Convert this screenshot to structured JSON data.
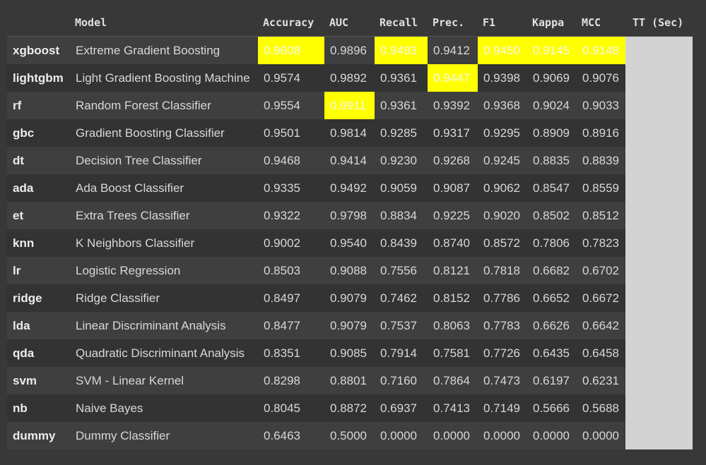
{
  "columns": [
    "",
    "Model",
    "Accuracy",
    "AUC",
    "Recall",
    "Prec.",
    "F1",
    "Kappa",
    "MCC",
    "TT (Sec)"
  ],
  "highlight_color": "#ffff00",
  "tt_column_color": "#d3d3d3",
  "rows": [
    {
      "id": "xgboost",
      "model": "Extreme Gradient Boosting",
      "accuracy": "0.9608",
      "auc": "0.9896",
      "recall": "0.9493",
      "prec": "0.9412",
      "f1": "0.9450",
      "kappa": "0.9145",
      "mcc": "0.9148",
      "tt": "",
      "highlight": [
        "accuracy",
        "recall",
        "f1",
        "kappa",
        "mcc"
      ]
    },
    {
      "id": "lightgbm",
      "model": "Light Gradient Boosting Machine",
      "accuracy": "0.9574",
      "auc": "0.9892",
      "recall": "0.9361",
      "prec": "0.9447",
      "f1": "0.9398",
      "kappa": "0.9069",
      "mcc": "0.9076",
      "tt": "",
      "highlight": [
        "prec"
      ]
    },
    {
      "id": "rf",
      "model": "Random Forest Classifier",
      "accuracy": "0.9554",
      "auc": "0.9911",
      "recall": "0.9361",
      "prec": "0.9392",
      "f1": "0.9368",
      "kappa": "0.9024",
      "mcc": "0.9033",
      "tt": "",
      "highlight": [
        "auc"
      ]
    },
    {
      "id": "gbc",
      "model": "Gradient Boosting Classifier",
      "accuracy": "0.9501",
      "auc": "0.9814",
      "recall": "0.9285",
      "prec": "0.9317",
      "f1": "0.9295",
      "kappa": "0.8909",
      "mcc": "0.8916",
      "tt": "",
      "highlight": []
    },
    {
      "id": "dt",
      "model": "Decision Tree Classifier",
      "accuracy": "0.9468",
      "auc": "0.9414",
      "recall": "0.9230",
      "prec": "0.9268",
      "f1": "0.9245",
      "kappa": "0.8835",
      "mcc": "0.8839",
      "tt": "",
      "highlight": []
    },
    {
      "id": "ada",
      "model": "Ada Boost Classifier",
      "accuracy": "0.9335",
      "auc": "0.9492",
      "recall": "0.9059",
      "prec": "0.9087",
      "f1": "0.9062",
      "kappa": "0.8547",
      "mcc": "0.8559",
      "tt": "",
      "highlight": []
    },
    {
      "id": "et",
      "model": "Extra Trees Classifier",
      "accuracy": "0.9322",
      "auc": "0.9798",
      "recall": "0.8834",
      "prec": "0.9225",
      "f1": "0.9020",
      "kappa": "0.8502",
      "mcc": "0.8512",
      "tt": "",
      "highlight": []
    },
    {
      "id": "knn",
      "model": "K Neighbors Classifier",
      "accuracy": "0.9002",
      "auc": "0.9540",
      "recall": "0.8439",
      "prec": "0.8740",
      "f1": "0.8572",
      "kappa": "0.7806",
      "mcc": "0.7823",
      "tt": "",
      "highlight": []
    },
    {
      "id": "lr",
      "model": "Logistic Regression",
      "accuracy": "0.8503",
      "auc": "0.9088",
      "recall": "0.7556",
      "prec": "0.8121",
      "f1": "0.7818",
      "kappa": "0.6682",
      "mcc": "0.6702",
      "tt": "",
      "highlight": []
    },
    {
      "id": "ridge",
      "model": "Ridge Classifier",
      "accuracy": "0.8497",
      "auc": "0.9079",
      "recall": "0.7462",
      "prec": "0.8152",
      "f1": "0.7786",
      "kappa": "0.6652",
      "mcc": "0.6672",
      "tt": "",
      "highlight": []
    },
    {
      "id": "lda",
      "model": "Linear Discriminant Analysis",
      "accuracy": "0.8477",
      "auc": "0.9079",
      "recall": "0.7537",
      "prec": "0.8063",
      "f1": "0.7783",
      "kappa": "0.6626",
      "mcc": "0.6642",
      "tt": "",
      "highlight": []
    },
    {
      "id": "qda",
      "model": "Quadratic Discriminant Analysis",
      "accuracy": "0.8351",
      "auc": "0.9085",
      "recall": "0.7914",
      "prec": "0.7581",
      "f1": "0.7726",
      "kappa": "0.6435",
      "mcc": "0.6458",
      "tt": "",
      "highlight": []
    },
    {
      "id": "svm",
      "model": "SVM - Linear Kernel",
      "accuracy": "0.8298",
      "auc": "0.8801",
      "recall": "0.7160",
      "prec": "0.7864",
      "f1": "0.7473",
      "kappa": "0.6197",
      "mcc": "0.6231",
      "tt": "",
      "highlight": []
    },
    {
      "id": "nb",
      "model": "Naive Bayes",
      "accuracy": "0.8045",
      "auc": "0.8872",
      "recall": "0.6937",
      "prec": "0.7413",
      "f1": "0.7149",
      "kappa": "0.5666",
      "mcc": "0.5688",
      "tt": "",
      "highlight": []
    },
    {
      "id": "dummy",
      "model": "Dummy Classifier",
      "accuracy": "0.6463",
      "auc": "0.5000",
      "recall": "0.0000",
      "prec": "0.0000",
      "f1": "0.0000",
      "kappa": "0.0000",
      "mcc": "0.0000",
      "tt": "",
      "highlight": []
    }
  ]
}
